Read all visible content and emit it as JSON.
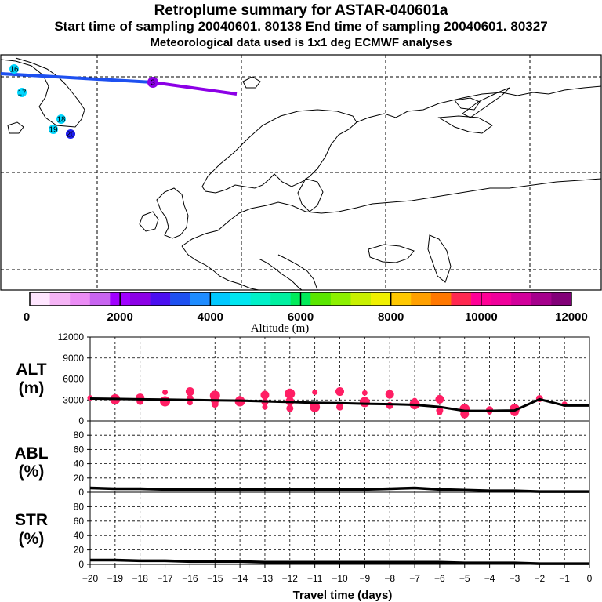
{
  "header": {
    "title": "Retroplume summary for ASTAR-040601a",
    "line2": "Start time of sampling 20040601. 80138     End time of sampling 20040601. 80327",
    "line3": "Meteorological data used is 1x1 deg ECMWF analyses"
  },
  "map": {
    "markers": [
      {
        "label": "16",
        "color": "#00d7ff"
      },
      {
        "label": "17",
        "color": "#00d7ff"
      },
      {
        "label": "18",
        "color": "#00d7ff"
      },
      {
        "label": "19",
        "color": "#00d7ff"
      },
      {
        "label": "20",
        "color": "#1e1ef0"
      },
      {
        "label": "3",
        "color": "#8c00e6"
      }
    ]
  },
  "colorbar": {
    "label": "Altitude (m)",
    "ticks": [
      "0",
      "2000",
      "4000",
      "6000",
      "8000",
      "10000",
      "12000"
    ],
    "colors": [
      "#ffe6ff",
      "#f5b4f5",
      "#eb8cf5",
      "#c864f0",
      "#a000ff",
      "#8c00e6",
      "#4b0ff0",
      "#1e50f0",
      "#1e8cff",
      "#00c8ff",
      "#00e6f0",
      "#00f0c8",
      "#00f0a0",
      "#00eb5a",
      "#5ae600",
      "#8cf000",
      "#c8f000",
      "#f0f000",
      "#ffc800",
      "#ffa000",
      "#ff7800",
      "#ff2850",
      "#ff0096",
      "#f0009b",
      "#d2009b",
      "#a5008c",
      "#820078"
    ]
  },
  "chart_data": [
    {
      "type": "line",
      "panel": "ALT",
      "ylabel": "ALT\n(m)",
      "ylabel_line1": "ALT",
      "ylabel_line2": "(m)",
      "ylim": [
        0,
        12000
      ],
      "yticks": [
        "0",
        "3000",
        "6000",
        "9000",
        "12000"
      ],
      "x": [
        -20,
        -19,
        -18,
        -17,
        -16,
        -15,
        -14,
        -13,
        -12,
        -11,
        -10,
        -9,
        -8,
        -7,
        -6,
        -5,
        -4,
        -3,
        -2,
        -1,
        0
      ],
      "values": [
        3200,
        3150,
        3100,
        3050,
        3000,
        2950,
        2900,
        2800,
        2700,
        2600,
        2550,
        2450,
        2400,
        2300,
        2000,
        1450,
        1450,
        1500,
        3100,
        2200,
        2200
      ],
      "scatter": [
        [
          -20,
          3300
        ],
        [
          -19,
          3100
        ],
        [
          -18,
          3300
        ],
        [
          -18,
          2800
        ],
        [
          -17,
          4100
        ],
        [
          -17,
          2800
        ],
        [
          -16,
          4200
        ],
        [
          -16,
          3200
        ],
        [
          -16,
          2600
        ],
        [
          -15,
          3600
        ],
        [
          -15,
          3000
        ],
        [
          -15,
          2400
        ],
        [
          -14,
          3200
        ],
        [
          -14,
          2800
        ],
        [
          -13,
          3700
        ],
        [
          -13,
          2700
        ],
        [
          -13,
          2000
        ],
        [
          -12,
          3900
        ],
        [
          -12,
          2800
        ],
        [
          -12,
          1800
        ],
        [
          -11,
          4100
        ],
        [
          -11,
          2000
        ],
        [
          -10,
          4200
        ],
        [
          -10,
          2000
        ],
        [
          -9,
          4000
        ],
        [
          -9,
          2700
        ],
        [
          -8,
          3800
        ],
        [
          -8,
          2200
        ],
        [
          -7,
          2900
        ],
        [
          -7,
          2400
        ],
        [
          -6,
          3100
        ],
        [
          -6,
          1500
        ],
        [
          -6,
          1200
        ],
        [
          -5,
          1700
        ],
        [
          -5,
          1000
        ],
        [
          -4,
          1600
        ],
        [
          -4,
          1300
        ],
        [
          -3,
          1700
        ],
        [
          -3,
          1300
        ],
        [
          -2,
          3200
        ],
        [
          -1,
          2400
        ]
      ],
      "scatter_color": "#ff1e64",
      "line_color": "#000000"
    },
    {
      "type": "line",
      "panel": "ABL",
      "ylabel_line1": "ABL",
      "ylabel_line2": "(%)",
      "ylim": [
        0,
        100
      ],
      "yticks": [
        "0",
        "20",
        "40",
        "60",
        "80"
      ],
      "x": [
        -20,
        -19,
        -18,
        -17,
        -16,
        -15,
        -14,
        -13,
        -12,
        -11,
        -10,
        -9,
        -8,
        -7,
        -6,
        -5,
        -4,
        -3,
        -2,
        -1,
        0
      ],
      "values": [
        6,
        5,
        5,
        4,
        4,
        4,
        4,
        4,
        4,
        4,
        4,
        4,
        5,
        6,
        4,
        3,
        2,
        2,
        1,
        1,
        1
      ]
    },
    {
      "type": "line",
      "panel": "STR",
      "ylabel_line1": "STR",
      "ylabel_line2": "(%)",
      "ylim": [
        0,
        100
      ],
      "yticks": [
        "0",
        "20",
        "40",
        "60",
        "80"
      ],
      "x": [
        -20,
        -19,
        -18,
        -17,
        -16,
        -15,
        -14,
        -13,
        -12,
        -11,
        -10,
        -9,
        -8,
        -7,
        -6,
        -5,
        -4,
        -3,
        -2,
        -1,
        0
      ],
      "values": [
        6,
        6,
        5,
        5,
        4,
        4,
        4,
        3,
        3,
        3,
        3,
        3,
        3,
        3,
        3,
        2,
        2,
        2,
        1,
        1,
        1
      ],
      "xlabel": "Travel time (days)",
      "xticks": [
        "−20",
        "−19",
        "−18",
        "−17",
        "−16",
        "−15",
        "−14",
        "−13",
        "−12",
        "−11",
        "−10",
        "−9",
        "−8",
        "−7",
        "−6",
        "−5",
        "−4",
        "−3",
        "−2",
        "−1",
        "0"
      ]
    }
  ]
}
